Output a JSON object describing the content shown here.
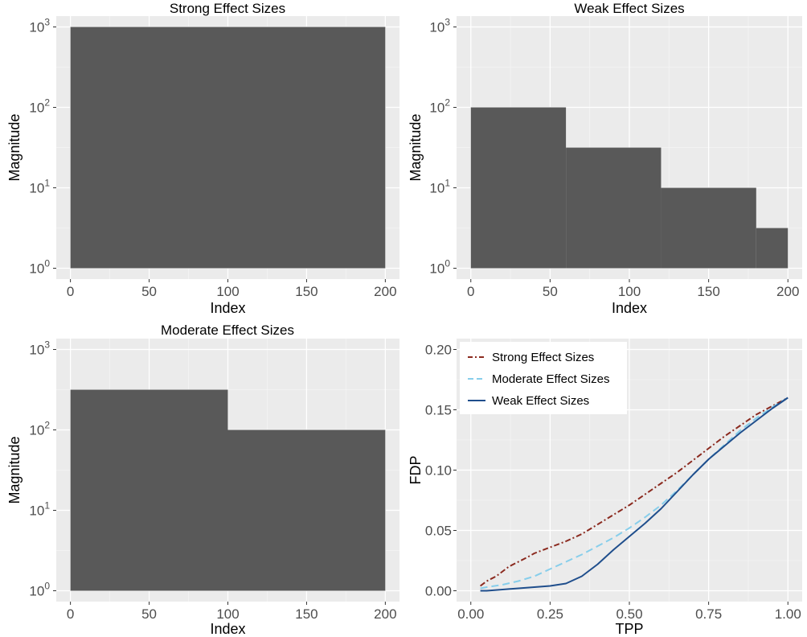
{
  "chart_data": [
    {
      "type": "bar",
      "title": "Strong Effect Sizes",
      "xlabel": "Index",
      "ylabel": "Magnitude",
      "yscale": "log10",
      "xlim": [
        0,
        200
      ],
      "ylim": [
        1,
        1000
      ],
      "x_ticks": [
        0,
        50,
        100,
        150,
        200
      ],
      "x_tick_labels": [
        "0",
        "50",
        "100",
        "150",
        "200"
      ],
      "y_ticks": [
        1,
        10,
        100,
        1000
      ],
      "y_tick_labels": [
        {
          "base": "10",
          "exp": "0"
        },
        {
          "base": "10",
          "exp": "1"
        },
        {
          "base": "10",
          "exp": "2"
        },
        {
          "base": "10",
          "exp": "3"
        }
      ],
      "grid": true,
      "bar_color": "#595959",
      "segments": [
        {
          "x_start": 0,
          "x_end": 200,
          "value": 1000
        }
      ]
    },
    {
      "type": "bar",
      "title": "Weak Effect Sizes",
      "xlabel": "Index",
      "ylabel": "Magnitude",
      "yscale": "log10",
      "xlim": [
        0,
        200
      ],
      "ylim": [
        1,
        1000
      ],
      "x_ticks": [
        0,
        50,
        100,
        150,
        200
      ],
      "x_tick_labels": [
        "0",
        "50",
        "100",
        "150",
        "200"
      ],
      "y_ticks": [
        1,
        10,
        100,
        1000
      ],
      "y_tick_labels": [
        {
          "base": "10",
          "exp": "0"
        },
        {
          "base": "10",
          "exp": "1"
        },
        {
          "base": "10",
          "exp": "2"
        },
        {
          "base": "10",
          "exp": "3"
        }
      ],
      "grid": true,
      "bar_color": "#595959",
      "segments": [
        {
          "x_start": 0,
          "x_end": 60,
          "value": 100
        },
        {
          "x_start": 60,
          "x_end": 120,
          "value": 31.6
        },
        {
          "x_start": 120,
          "x_end": 180,
          "value": 10
        },
        {
          "x_start": 180,
          "x_end": 200,
          "value": 3.16
        }
      ]
    },
    {
      "type": "bar",
      "title": "Moderate Effect Sizes",
      "xlabel": "Index",
      "ylabel": "Magnitude",
      "yscale": "log10",
      "xlim": [
        0,
        200
      ],
      "ylim": [
        1,
        1000
      ],
      "x_ticks": [
        0,
        50,
        100,
        150,
        200
      ],
      "x_tick_labels": [
        "0",
        "50",
        "100",
        "150",
        "200"
      ],
      "y_ticks": [
        1,
        10,
        100,
        1000
      ],
      "y_tick_labels": [
        {
          "base": "10",
          "exp": "0"
        },
        {
          "base": "10",
          "exp": "1"
        },
        {
          "base": "10",
          "exp": "2"
        },
        {
          "base": "10",
          "exp": "3"
        }
      ],
      "grid": true,
      "bar_color": "#595959",
      "segments": [
        {
          "x_start": 0,
          "x_end": 100,
          "value": 316
        },
        {
          "x_start": 100,
          "x_end": 200,
          "value": 100
        }
      ]
    },
    {
      "type": "line",
      "title": "",
      "xlabel": "TPP",
      "ylabel": "FDP",
      "xlim": [
        0,
        1
      ],
      "ylim": [
        0,
        0.2
      ],
      "x_ticks": [
        0,
        0.25,
        0.5,
        0.75,
        1
      ],
      "x_tick_labels": [
        "0.00",
        "0.25",
        "0.50",
        "0.75",
        "1.00"
      ],
      "y_ticks": [
        0,
        0.05,
        0.1,
        0.15,
        0.2
      ],
      "y_tick_labels": [
        "0.00",
        "0.05",
        "0.10",
        "0.15",
        "0.20"
      ],
      "grid": true,
      "legend": "top-left",
      "series": [
        {
          "name": "Strong Effect Sizes",
          "color": "#8b2a1f",
          "dash": "dashdot",
          "x": [
            0.03,
            0.05,
            0.08,
            0.1,
            0.12,
            0.15,
            0.18,
            0.2,
            0.25,
            0.3,
            0.35,
            0.4,
            0.45,
            0.5,
            0.55,
            0.6,
            0.65,
            0.7,
            0.75,
            0.8,
            0.85,
            0.9,
            0.95,
            1.0
          ],
          "y": [
            0.004,
            0.008,
            0.012,
            0.016,
            0.02,
            0.024,
            0.028,
            0.031,
            0.036,
            0.041,
            0.047,
            0.055,
            0.063,
            0.071,
            0.08,
            0.089,
            0.098,
            0.108,
            0.118,
            0.128,
            0.137,
            0.146,
            0.153,
            0.16
          ]
        },
        {
          "name": "Moderate Effect Sizes",
          "color": "#87ceeb",
          "dash": "dashed",
          "x": [
            0.03,
            0.05,
            0.1,
            0.15,
            0.2,
            0.25,
            0.3,
            0.35,
            0.4,
            0.45,
            0.5,
            0.55,
            0.6,
            0.65,
            0.7,
            0.75,
            0.8,
            0.85,
            0.9,
            0.95,
            1.0
          ],
          "y": [
            0.002,
            0.003,
            0.005,
            0.008,
            0.012,
            0.018,
            0.024,
            0.03,
            0.037,
            0.044,
            0.052,
            0.061,
            0.071,
            0.083,
            0.096,
            0.109,
            0.121,
            0.133,
            0.143,
            0.152,
            0.16
          ]
        },
        {
          "name": "Weak Effect Sizes",
          "color": "#1f4e8c",
          "dash": "solid",
          "x": [
            0.03,
            0.05,
            0.1,
            0.15,
            0.2,
            0.25,
            0.3,
            0.35,
            0.4,
            0.45,
            0.5,
            0.55,
            0.6,
            0.65,
            0.7,
            0.75,
            0.8,
            0.85,
            0.9,
            0.95,
            1.0
          ],
          "y": [
            0.0,
            0.0,
            0.001,
            0.002,
            0.003,
            0.004,
            0.006,
            0.012,
            0.022,
            0.034,
            0.045,
            0.056,
            0.068,
            0.082,
            0.096,
            0.109,
            0.12,
            0.131,
            0.141,
            0.151,
            0.16
          ]
        }
      ]
    }
  ]
}
